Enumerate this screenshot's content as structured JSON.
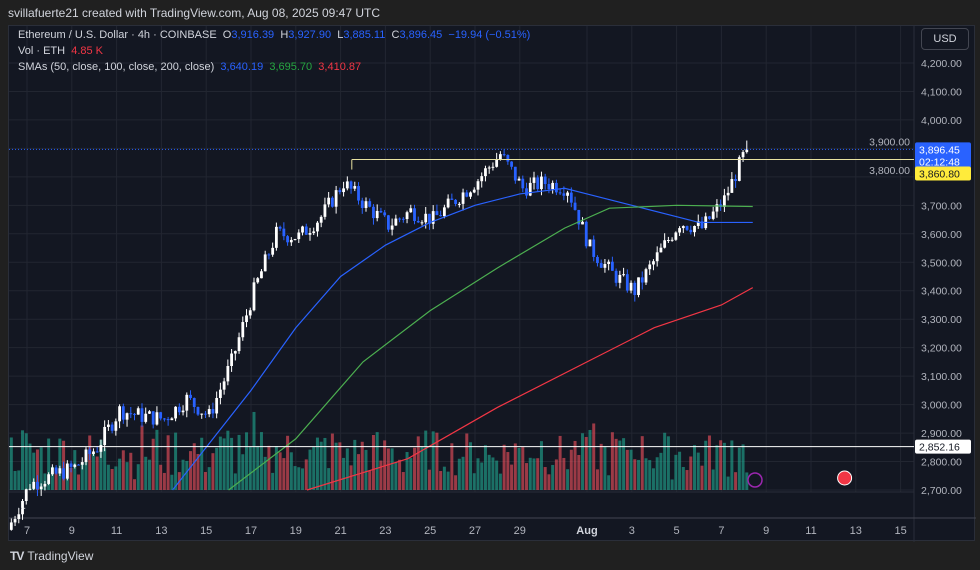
{
  "credit": "svillafuerte21 created with TradingView.com, Aug 08, 2025 09:47 UTC",
  "legend": {
    "symbol": "Ethereum / U.S. Dollar · 4h · COINBASE",
    "o_label": "O",
    "o": "3,916.39",
    "h_label": "H",
    "h": "3,927.90",
    "l_label": "L",
    "l": "3,885.11",
    "c_label": "C",
    "c": "3,896.45",
    "change": "−19.94 (−0.51%)",
    "vol_label": "Vol · ETH",
    "vol": "4.85 K",
    "sma_label": "SMAs (50, close, 100, close, 200, close)",
    "sma50": "3,640.19",
    "sma100": "3,695.70",
    "sma200": "3,410.87"
  },
  "currency": "USD",
  "more": "...",
  "brand": "TradingView",
  "chart_data": {
    "type": "candlestick",
    "interval": "4h",
    "colors": {
      "up": "#ffffff",
      "down": "#2962ff",
      "vol_up": "#22ab94",
      "vol_down": "#f7525f",
      "sma50": "#2962ff",
      "sma100": "#4caf50",
      "sma200": "#f23645",
      "hline": "#ffeb3b"
    },
    "ylim": [
      2700,
      4200
    ],
    "yticks": [
      "4,200.00",
      "4,100.00",
      "4,000.00",
      "3,900.00",
      "3,800.00",
      "3,700.00",
      "3,600.00",
      "3,500.00",
      "3,400.00",
      "3,300.00",
      "3,200.00",
      "3,100.00",
      "3,000.00",
      "2,900.00",
      "2,800.00",
      "2,700.00"
    ],
    "ytick_values": [
      4200,
      4100,
      4000,
      3900,
      3800,
      3700,
      3600,
      3500,
      3400,
      3300,
      3200,
      3100,
      3000,
      2900,
      2800,
      2700
    ],
    "xticks": [
      "7",
      "9",
      "11",
      "13",
      "15",
      "17",
      "19",
      "21",
      "23",
      "25",
      "27",
      "29",
      "Aug",
      "3",
      "5",
      "7",
      "9",
      "11",
      "13",
      "15"
    ],
    "xtick_days": [
      7,
      9,
      11,
      13,
      15,
      17,
      19,
      21,
      23,
      25,
      27,
      29,
      32,
      34,
      36,
      38,
      40,
      42,
      44,
      46
    ],
    "daily_closes_jul": [
      [
        6,
        2560
      ],
      [
        7,
        2720
      ],
      [
        8,
        2750
      ],
      [
        9,
        2780
      ],
      [
        10,
        2850
      ],
      [
        11,
        2980
      ],
      [
        12,
        2960
      ],
      [
        13,
        2950
      ],
      [
        14,
        3020
      ],
      [
        15,
        2960
      ],
      [
        16,
        3150
      ],
      [
        17,
        3400
      ],
      [
        18,
        3600
      ],
      [
        19,
        3590
      ],
      [
        20,
        3660
      ],
      [
        21,
        3780
      ],
      [
        22,
        3700
      ],
      [
        23,
        3630
      ],
      [
        24,
        3680
      ],
      [
        25,
        3650
      ],
      [
        26,
        3720
      ],
      [
        27,
        3790
      ],
      [
        28,
        3880
      ],
      [
        29,
        3760
      ],
      [
        30,
        3780
      ],
      [
        31,
        3760
      ],
      [
        32,
        3550
      ],
      [
        33,
        3460
      ],
      [
        34,
        3400
      ],
      [
        35,
        3520
      ],
      [
        36,
        3640
      ],
      [
        37,
        3620
      ],
      [
        38,
        3720
      ],
      [
        39,
        3900
      ]
    ],
    "sma50": [
      [
        13.5,
        2700
      ],
      [
        17,
        3050
      ],
      [
        19,
        3270
      ],
      [
        21,
        3450
      ],
      [
        23,
        3560
      ],
      [
        25,
        3640
      ],
      [
        27,
        3700
      ],
      [
        29,
        3740
      ],
      [
        31,
        3760
      ],
      [
        32,
        3740
      ],
      [
        34,
        3700
      ],
      [
        36,
        3660
      ],
      [
        37,
        3640
      ],
      [
        39.4,
        3640
      ]
    ],
    "sma100": [
      [
        16,
        2700
      ],
      [
        19,
        2880
      ],
      [
        22,
        3150
      ],
      [
        25,
        3330
      ],
      [
        28,
        3480
      ],
      [
        31,
        3620
      ],
      [
        33,
        3690
      ],
      [
        36,
        3700
      ],
      [
        39.4,
        3696
      ]
    ],
    "sma200": [
      [
        19.5,
        2700
      ],
      [
        24,
        2810
      ],
      [
        28,
        2990
      ],
      [
        32,
        3150
      ],
      [
        35,
        3270
      ],
      [
        38,
        3350
      ],
      [
        39.4,
        3411
      ]
    ],
    "last_price": 3896.45,
    "last_label": "3,896.45",
    "countdown": "02:12:48",
    "resistance": 3860.8,
    "resistance_label": "3,860.80",
    "resistance_start_day": 21.5,
    "support": 2852.16,
    "support_label": "2,852.16"
  }
}
